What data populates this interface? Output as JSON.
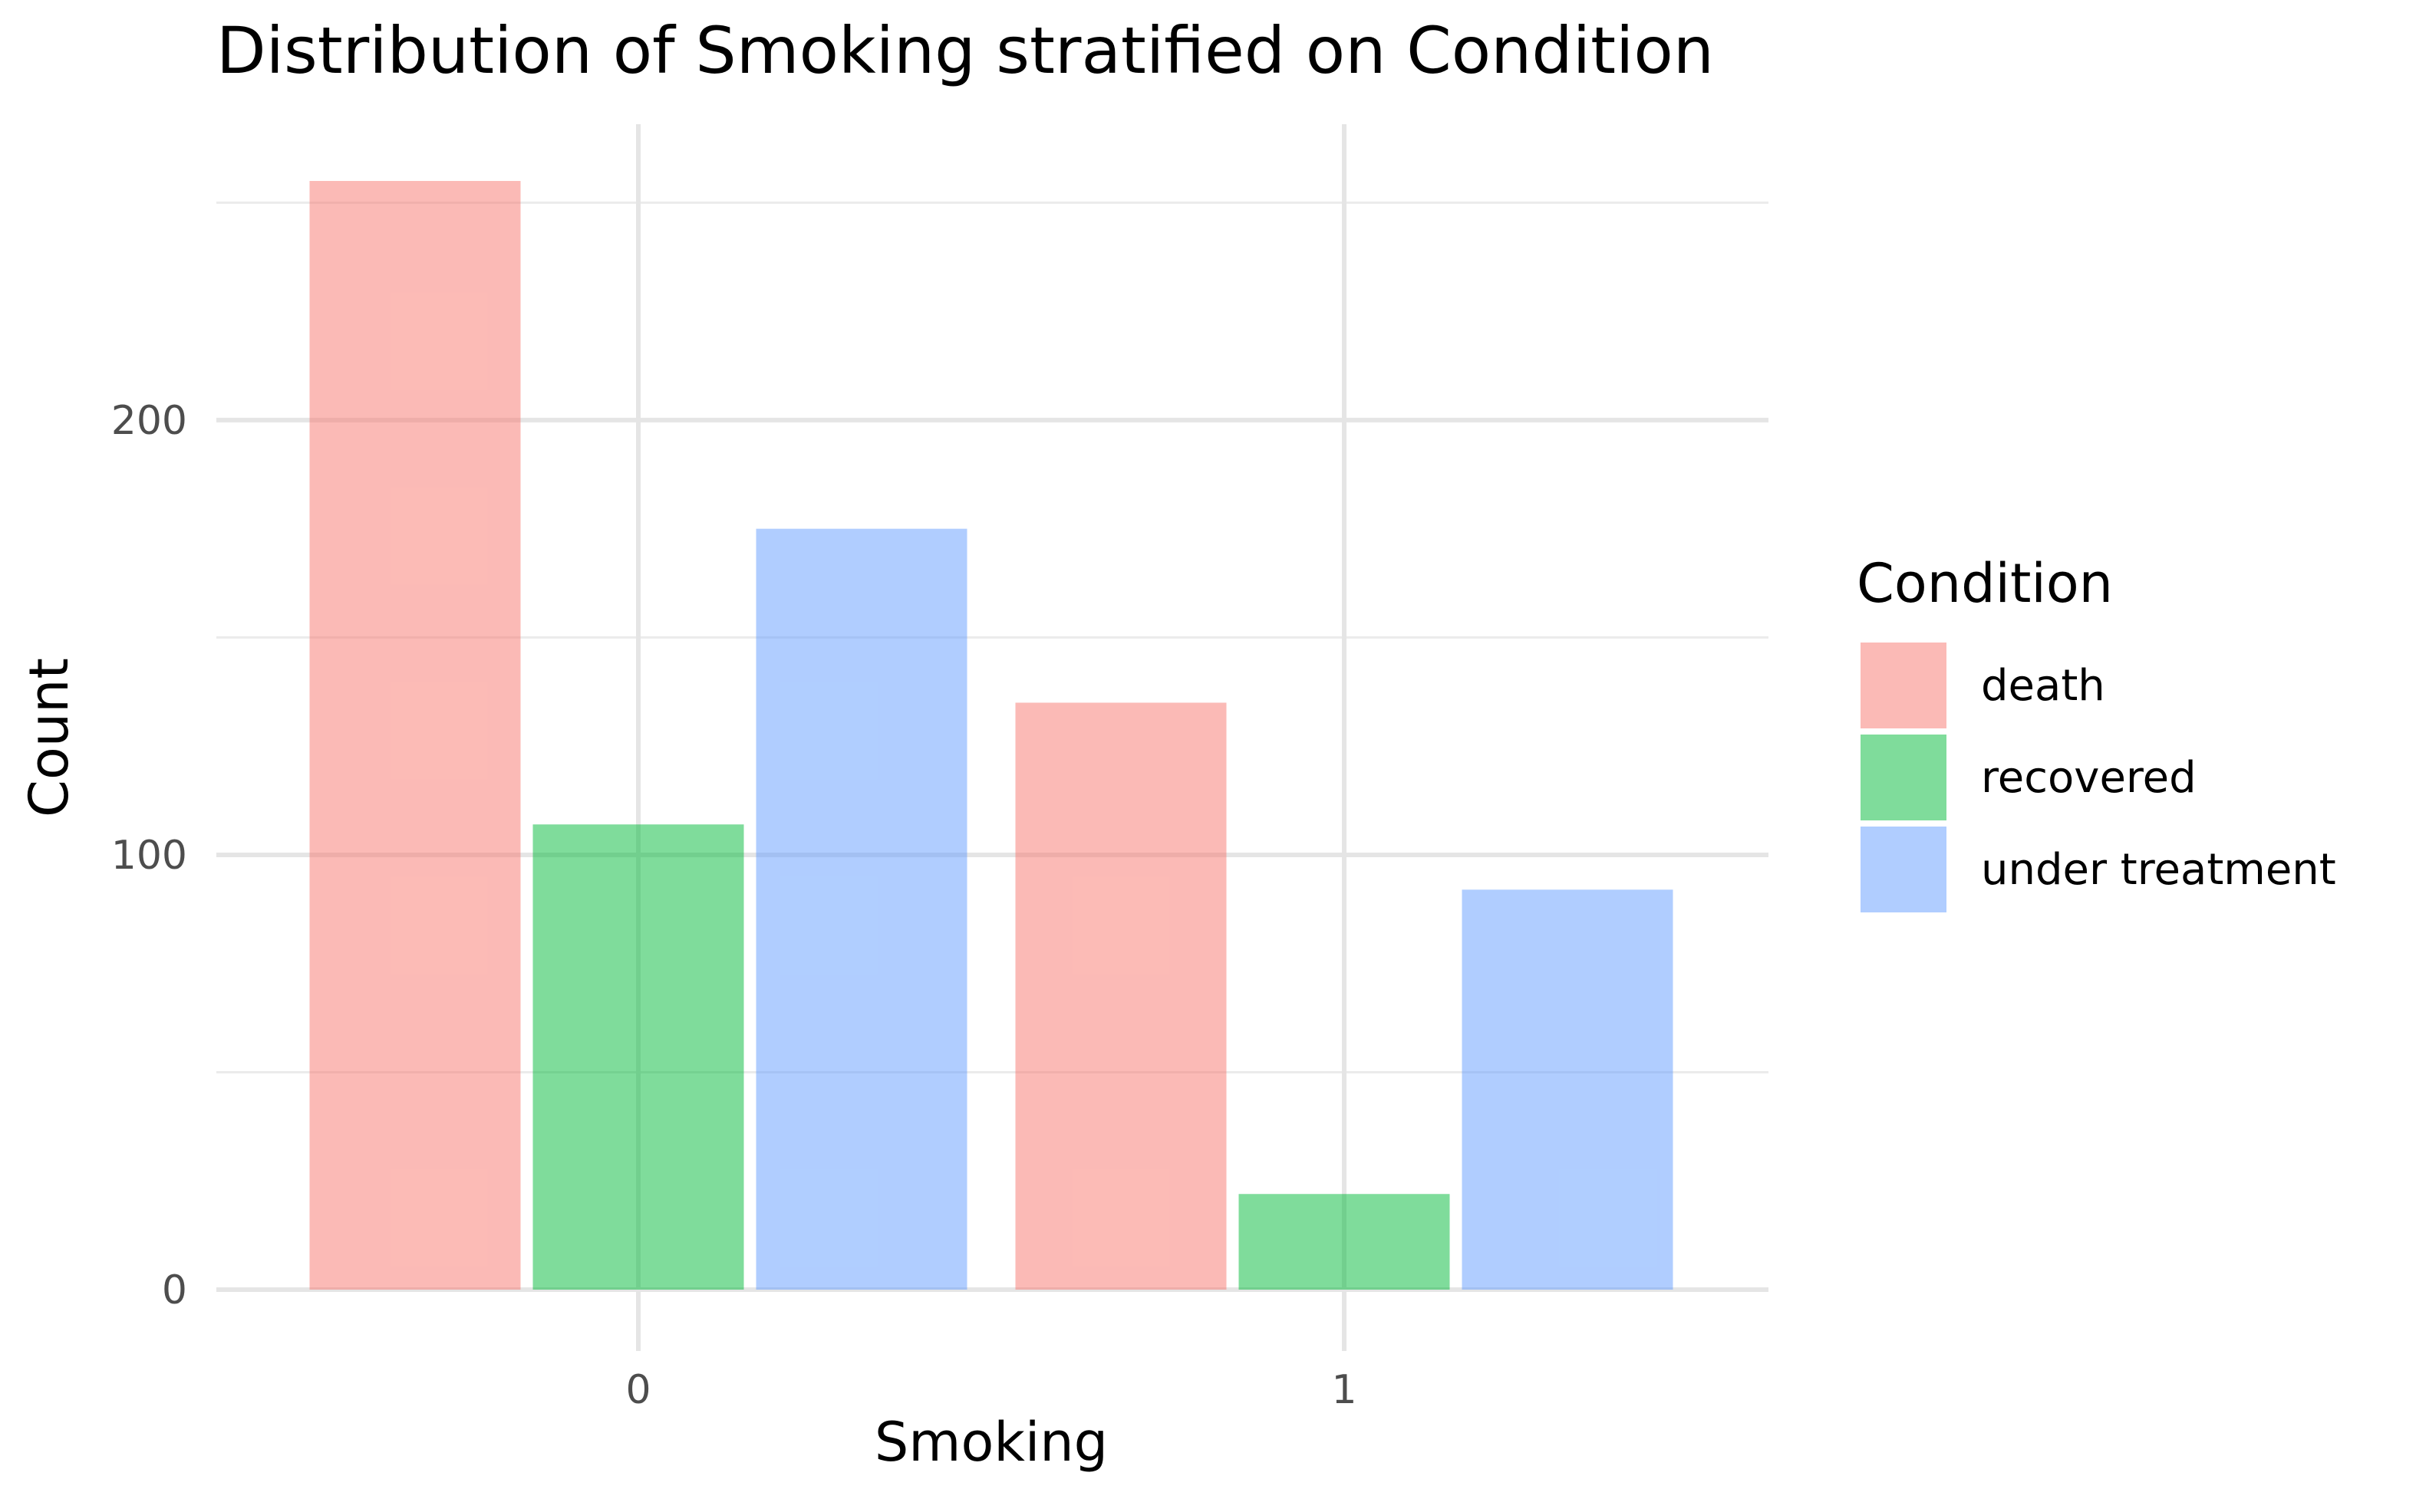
{
  "chart_data": {
    "type": "bar",
    "title": "Distribution of Smoking stratified on Condition",
    "xlabel": "Smoking",
    "ylabel": "Count",
    "categories": [
      "0",
      "1"
    ],
    "series": [
      {
        "name": "death",
        "color": "#F8766D",
        "values": [
          255,
          135
        ]
      },
      {
        "name": "recovered",
        "color": "#00BA38",
        "values": [
          107,
          22
        ]
      },
      {
        "name": "under treatment",
        "color": "#619CFF",
        "values": [
          175,
          92
        ]
      }
    ],
    "ylim": [
      0,
      255
    ],
    "y_ticks": [
      0,
      100,
      200
    ],
    "y_minor_ticks": [
      50,
      150,
      250
    ],
    "grid": true,
    "bar_opacity": 0.5,
    "legend": {
      "title": "Condition",
      "placement": "right"
    }
  }
}
